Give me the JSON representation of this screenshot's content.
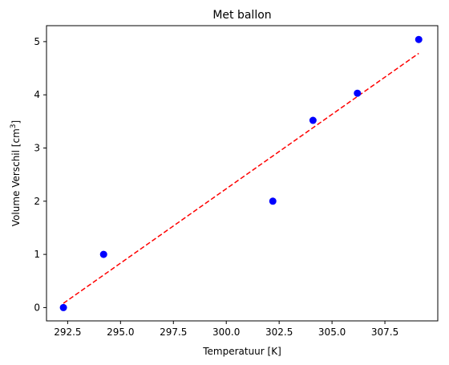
{
  "chart_data": {
    "type": "scatter",
    "title": "Met ballon",
    "xlabel": "Temperatuur [K]",
    "ylabel_main": "Volume Verschil [cm",
    "ylabel_sup": "3",
    "ylabel_end": "]",
    "xlim": [
      291.5,
      310.0
    ],
    "ylim": [
      -0.25,
      5.3
    ],
    "xticks": [
      292.5,
      295.0,
      297.5,
      300.0,
      302.5,
      305.0,
      307.5
    ],
    "xtick_labels": [
      "292.5",
      "295.0",
      "297.5",
      "300.0",
      "302.5",
      "305.0",
      "307.5"
    ],
    "yticks": [
      0,
      1,
      2,
      3,
      4,
      5
    ],
    "ytick_labels": [
      "0",
      "1",
      "2",
      "3",
      "4",
      "5"
    ],
    "grid": false,
    "series": [
      {
        "kind": "points",
        "color": "#0000ff",
        "x": [
          292.3,
          294.2,
          302.2,
          304.1,
          306.2,
          309.1
        ],
        "y": [
          0.0,
          1.0,
          2.0,
          3.52,
          4.03,
          5.04
        ]
      },
      {
        "kind": "fit-line",
        "color": "#ff0000",
        "dash": true,
        "x": [
          292.3,
          309.1
        ],
        "y": [
          0.08,
          4.78
        ]
      }
    ]
  }
}
